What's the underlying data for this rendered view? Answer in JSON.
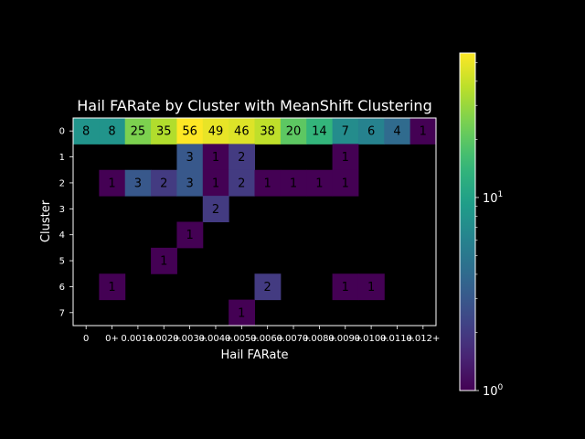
{
  "chart_data": {
    "type": "heatmap",
    "title": "Hail FARate by Cluster with MeanShift Clustering",
    "xlabel": "Hail FARate",
    "ylabel": "Cluster",
    "x_tick_labels": [
      "0",
      "0+",
      "0.001+",
      "0.002+",
      "0.003+",
      "0.004+",
      "0.005+",
      "0.006+",
      "0.007+",
      "0.008+",
      "0.009+",
      "0.010+",
      "0.011+",
      "0.012+"
    ],
    "y_tick_labels": [
      "0",
      "1",
      "2",
      "3",
      "4",
      "5",
      "6",
      "7"
    ],
    "values": [
      [
        8,
        8,
        25,
        35,
        56,
        49,
        46,
        38,
        20,
        14,
        7,
        6,
        4,
        1
      ],
      [
        null,
        null,
        null,
        null,
        3,
        1,
        2,
        null,
        null,
        null,
        1,
        null,
        null,
        null
      ],
      [
        null,
        1,
        3,
        2,
        3,
        1,
        2,
        1,
        1,
        1,
        1,
        null,
        null,
        null
      ],
      [
        null,
        null,
        null,
        null,
        null,
        2,
        null,
        null,
        null,
        null,
        null,
        null,
        null,
        null
      ],
      [
        null,
        null,
        null,
        null,
        1,
        null,
        null,
        null,
        null,
        null,
        null,
        null,
        null,
        null
      ],
      [
        null,
        null,
        null,
        1,
        null,
        null,
        null,
        null,
        null,
        null,
        null,
        null,
        null,
        null
      ],
      [
        null,
        1,
        null,
        null,
        null,
        null,
        null,
        2,
        null,
        null,
        1,
        1,
        null,
        null
      ],
      [
        null,
        null,
        null,
        null,
        null,
        null,
        1,
        null,
        null,
        null,
        null,
        null,
        null,
        null
      ]
    ],
    "colorbar": {
      "scale": "log",
      "colormap": "viridis",
      "range": [
        1,
        56
      ],
      "tick_labels": [
        {
          "value": 1,
          "base": "10",
          "exp": "0"
        },
        {
          "value": 10,
          "base": "10",
          "exp": "1"
        }
      ]
    }
  }
}
